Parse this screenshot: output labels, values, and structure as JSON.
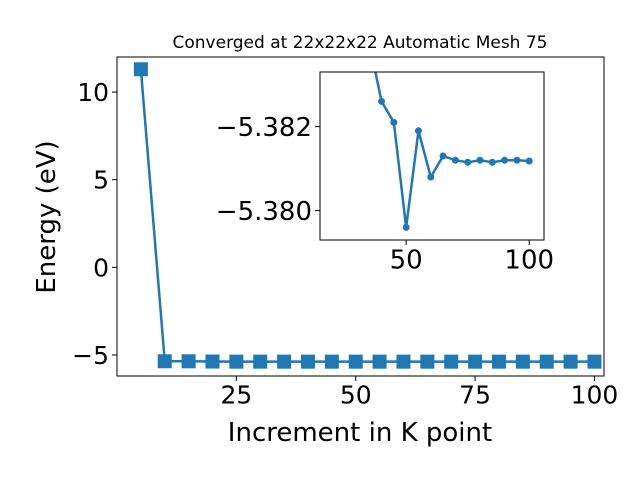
{
  "chart_data": [
    {
      "type": "line",
      "title": "Converged at 22x22x22 Automatic Mesh 75",
      "xlabel": "Increment in K point",
      "ylabel": "Energy (eV)",
      "xlim": [
        0,
        102
      ],
      "ylim": [
        -6.2,
        12.0
      ],
      "xticks": [
        25,
        50,
        75,
        100
      ],
      "yticks": [
        -5,
        0,
        5,
        10
      ],
      "ytick_labels": [
        "−5",
        "0",
        "5",
        "10"
      ],
      "grid": false,
      "marker": "square",
      "color": "#1f77b4",
      "series": [
        {
          "x": [
            5,
            10,
            15,
            20,
            25,
            30,
            35,
            40,
            45,
            50,
            55,
            60,
            65,
            70,
            75,
            80,
            85,
            90,
            95,
            100
          ],
          "y": [
            11.3,
            -5.36,
            -5.362,
            -5.375,
            -5.3816,
            -5.38,
            -5.3818,
            -5.3812,
            -5.3814,
            -5.3815,
            -5.3814,
            -5.3814,
            -5.3814,
            -5.3814,
            -5.3814,
            -5.3814,
            -5.3814,
            -5.3814,
            -5.3814,
            -5.3814
          ]
        }
      ]
    },
    {
      "type": "line",
      "title": "",
      "xlabel": "",
      "ylabel": "",
      "xlim": [
        15,
        106
      ],
      "ylim": [
        -5.3793,
        -5.3833
      ],
      "y_axis_inverted": true,
      "xticks": [
        50,
        100
      ],
      "yticks": [
        -5.382,
        -5.38
      ],
      "ytick_labels": [
        "−5.382",
        "−5.380"
      ],
      "grid": false,
      "marker": "circle",
      "color": "#1f77b4",
      "series": [
        {
          "x": [
            35,
            40,
            45,
            50,
            55,
            60,
            65,
            70,
            75,
            80,
            85,
            90,
            95,
            100
          ],
          "y": [
            -5.384,
            -5.3826,
            -5.3821,
            -5.3796,
            -5.3819,
            -5.3808,
            -5.3813,
            -5.3812,
            -5.38115,
            -5.3812,
            -5.38115,
            -5.3812,
            -5.3812,
            -5.38118
          ]
        }
      ]
    }
  ]
}
